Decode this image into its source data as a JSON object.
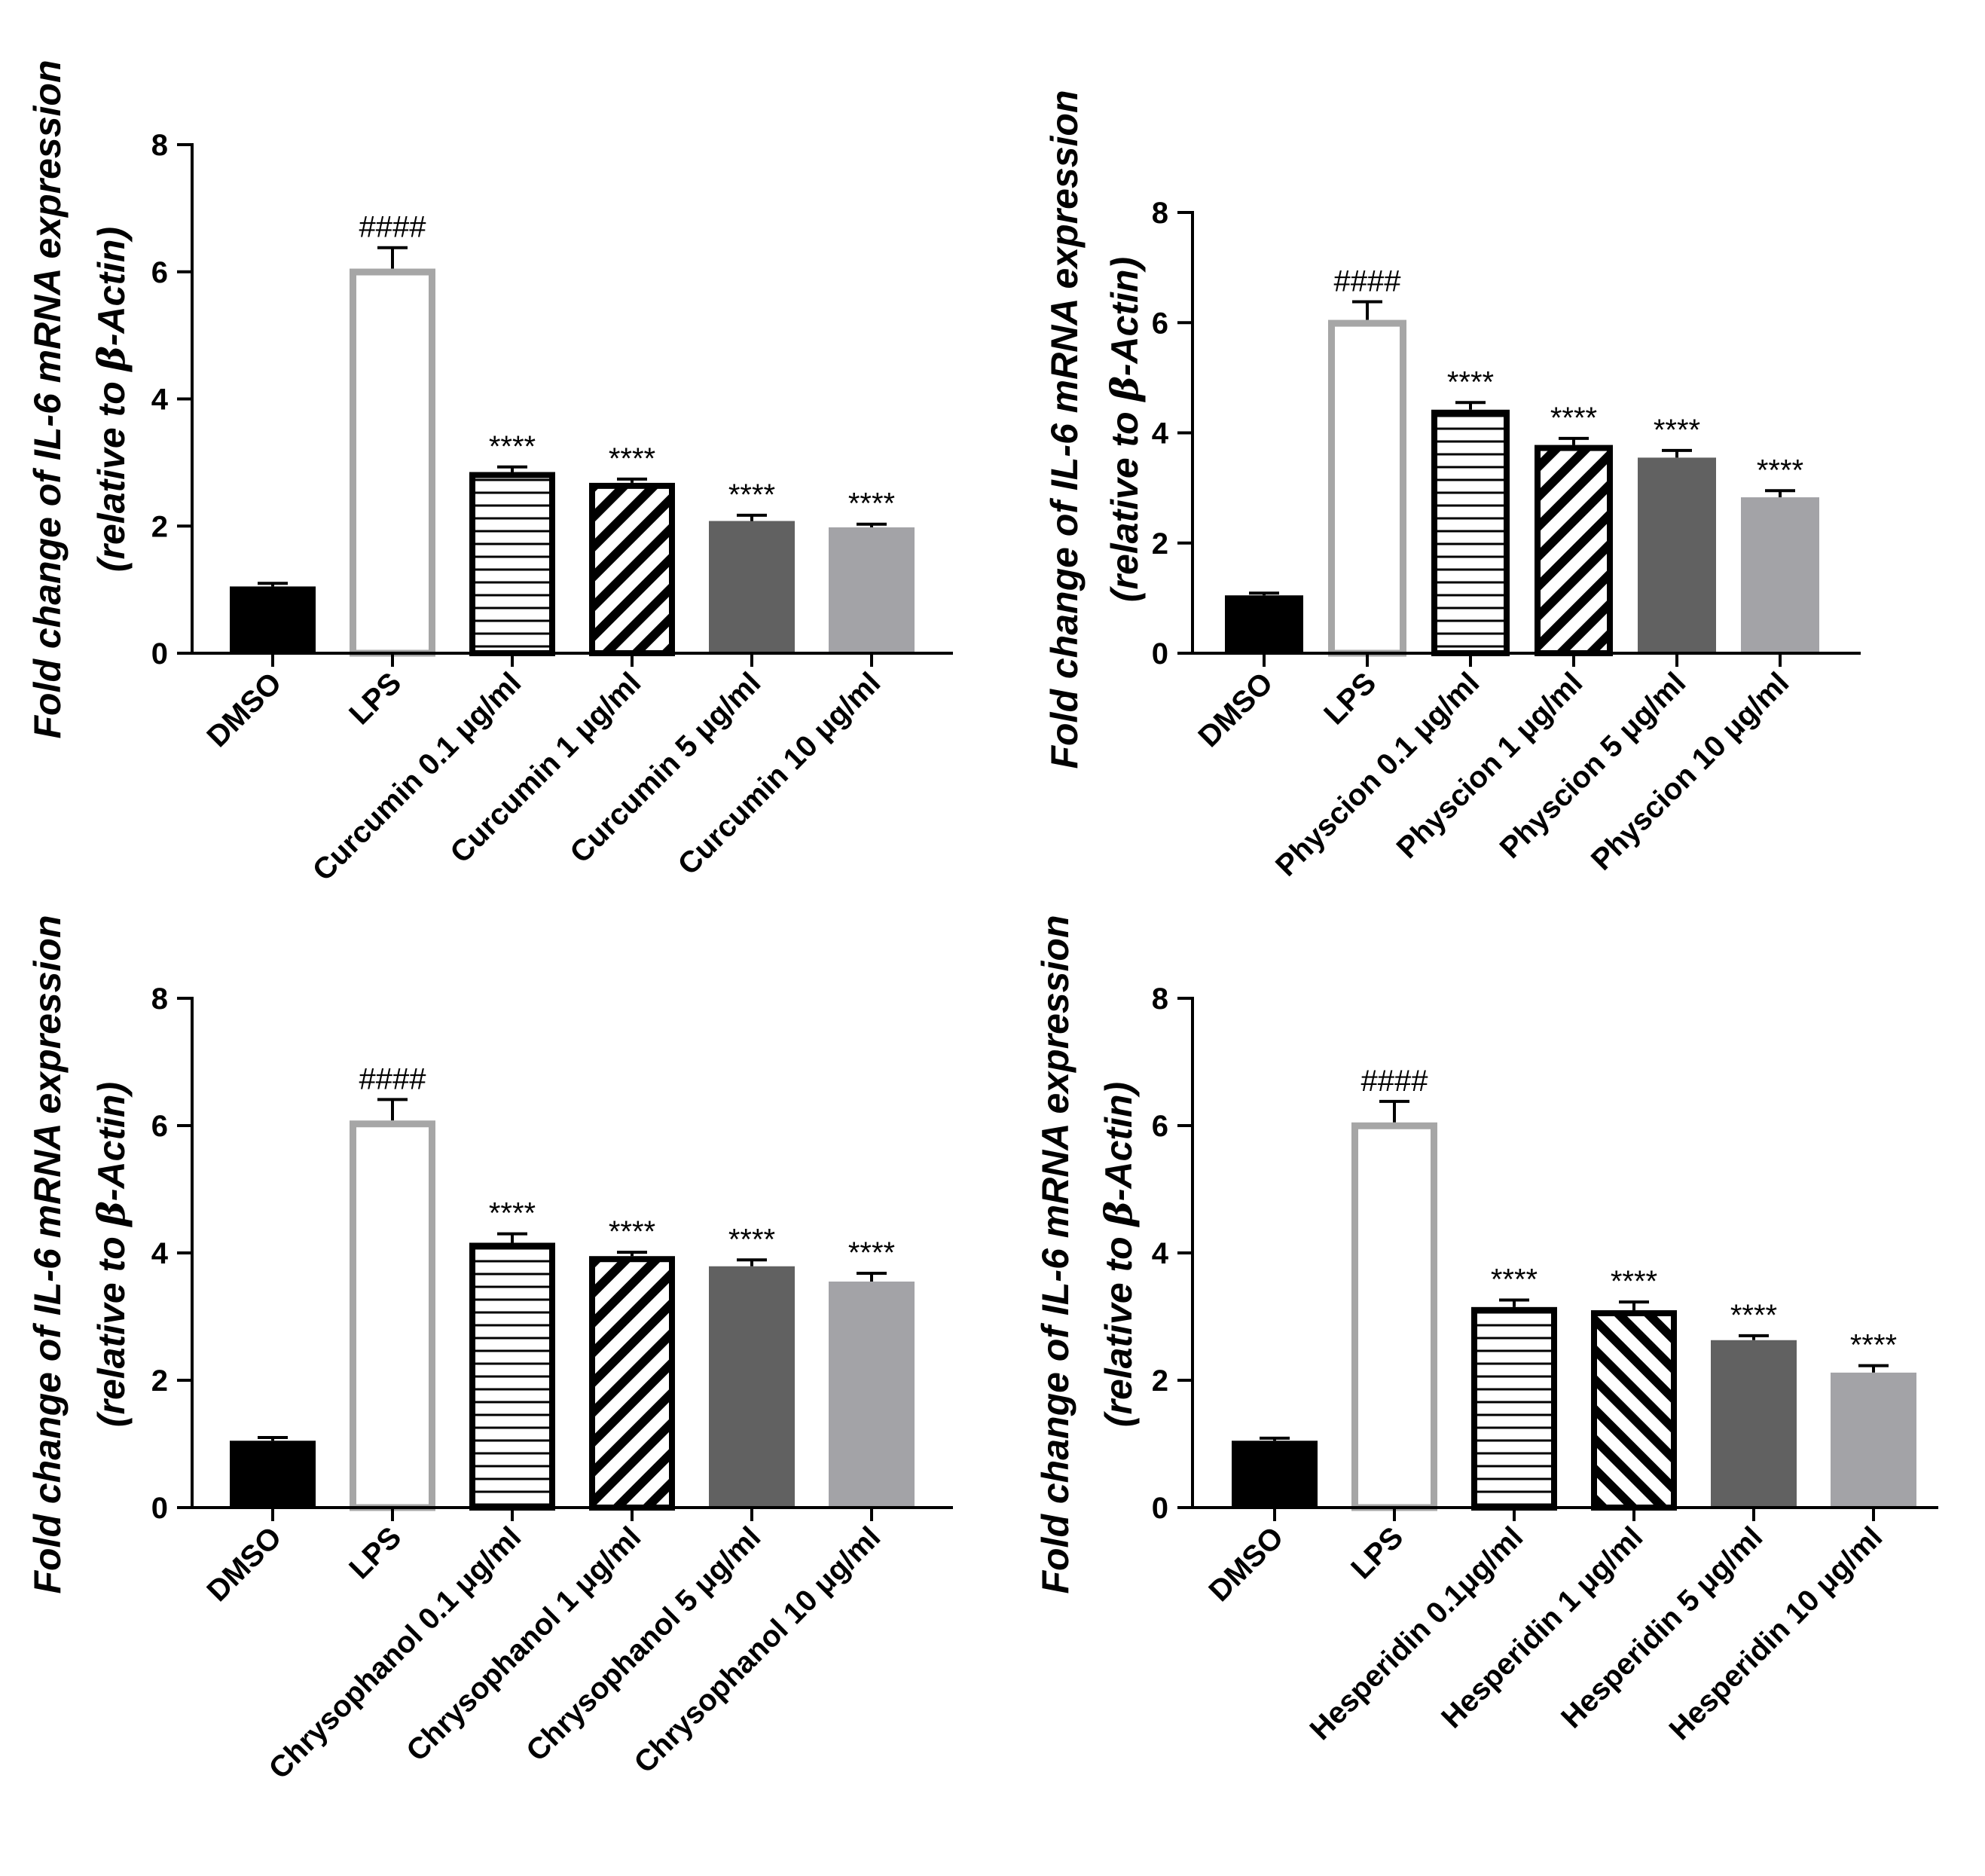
{
  "figure": {
    "title": "IL-6 mRNA expression"
  },
  "colors": {
    "black": "#000000",
    "lps_outline": "#a6a6a6",
    "dark_gray": "#616161",
    "light_gray": "#a3a3a7"
  },
  "chart_data": [
    {
      "type": "bar",
      "ylabel_line1": "Fold change of IL-6 mRNA expression",
      "ylabel_line2_pre": "(relative to ",
      "ylabel_line2_beta": "β",
      "ylabel_line2_post": "-Actin)",
      "ylim": [
        0,
        8
      ],
      "yticks": [
        "0",
        "2",
        "4",
        "6",
        "8"
      ],
      "categories": [
        "DMSO",
        "LPS",
        "Curcumin 0.1 μg/ml",
        "Curcumin 1 μg/ml",
        "Curcumin 5 μg/ml",
        "Curcumin 10 μg/ml"
      ],
      "values": [
        1.05,
        6.05,
        2.85,
        2.68,
        2.08,
        1.98
      ],
      "errors": [
        0.05,
        0.33,
        0.08,
        0.06,
        0.09,
        0.05
      ],
      "annotations": [
        "",
        "####",
        "****",
        "****",
        "****",
        "****"
      ],
      "styles": [
        "solid-black",
        "outline-gray",
        "horizontal-lines",
        "diagonal-lines",
        "solid-dark",
        "solid-light"
      ]
    },
    {
      "type": "bar",
      "ylabel_line1": "Fold change of IL-6 mRNA expression",
      "ylabel_line2_pre": "(relative to ",
      "ylabel_line2_beta": "β",
      "ylabel_line2_post": "-Actin)",
      "ylim": [
        0,
        8
      ],
      "yticks": [
        "0",
        "2",
        "4",
        "6",
        "8"
      ],
      "categories": [
        "DMSO",
        "LPS",
        "Physcion 0.1 μg/ml",
        "Physcion 1 μg/ml",
        "Physcion  5 μg/ml",
        "Physcion 10 μg/ml"
      ],
      "values": [
        1.05,
        6.05,
        4.42,
        3.78,
        3.55,
        2.83
      ],
      "errors": [
        0.04,
        0.33,
        0.13,
        0.12,
        0.13,
        0.12
      ],
      "annotations": [
        "",
        "####",
        "****",
        "****",
        "****",
        "****"
      ],
      "styles": [
        "solid-black",
        "outline-gray",
        "horizontal-lines",
        "diagonal-lines",
        "solid-dark",
        "solid-light"
      ]
    },
    {
      "type": "bar",
      "ylabel_line1": "Fold change of IL-6 mRNA expression",
      "ylabel_line2_pre": "(relative to ",
      "ylabel_line2_beta": "β",
      "ylabel_line2_post": "-Actin)",
      "ylim": [
        0,
        8
      ],
      "yticks": [
        "0",
        "2",
        "4",
        "6",
        "8"
      ],
      "categories": [
        "DMSO",
        "LPS",
        "Chrysophanol 0.1 μg/ml",
        "Chrysophanol 1 μg/ml",
        "Chrysophanol 5 μg/ml",
        "Chrysophanol 10 μg/ml"
      ],
      "values": [
        1.05,
        6.08,
        4.16,
        3.95,
        3.79,
        3.55
      ],
      "errors": [
        0.05,
        0.33,
        0.14,
        0.06,
        0.1,
        0.13
      ],
      "annotations": [
        "",
        "####",
        "****",
        "****",
        "****",
        "****"
      ],
      "styles": [
        "solid-black",
        "outline-gray",
        "horizontal-lines",
        "diagonal-lines",
        "solid-dark",
        "solid-light"
      ]
    },
    {
      "type": "bar",
      "ylabel_line1": "Fold change of IL-6 mRNA expression",
      "ylabel_line2_pre": "(relative to ",
      "ylabel_line2_beta": "β",
      "ylabel_line2_post": "-Actin)",
      "ylim": [
        0,
        8
      ],
      "yticks": [
        "0",
        "2",
        "4",
        "6",
        "8"
      ],
      "categories": [
        "DMSO",
        "LPS",
        "Hesperidin  0.1μg/ml",
        "Hesperidin 1 μg/ml",
        "Hesperidin  5 μg/ml",
        "Hesperidin 10 μg/ml"
      ],
      "values": [
        1.05,
        6.05,
        3.15,
        3.1,
        2.63,
        2.12
      ],
      "errors": [
        0.04,
        0.33,
        0.11,
        0.13,
        0.07,
        0.11
      ],
      "annotations": [
        "",
        "####",
        "****",
        "****",
        "****",
        "****"
      ],
      "styles": [
        "solid-black",
        "outline-gray",
        "horizontal-lines",
        "backdiagonal-lines",
        "solid-dark",
        "solid-light"
      ]
    }
  ]
}
